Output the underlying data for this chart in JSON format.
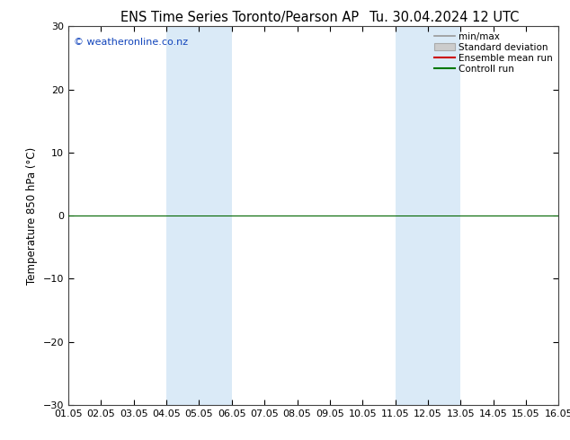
{
  "title_left": "ENS Time Series Toronto/Pearson AP",
  "title_right": "Tu. 30.04.2024 12 UTC",
  "ylabel": "Temperature 850 hPa (°C)",
  "watermark": "© weatheronline.co.nz",
  "xlim": [
    0,
    15
  ],
  "ylim": [
    -30,
    30
  ],
  "yticks": [
    -30,
    -20,
    -10,
    0,
    10,
    20,
    30
  ],
  "xtick_labels": [
    "01.05",
    "02.05",
    "03.05",
    "04.05",
    "05.05",
    "06.05",
    "07.05",
    "08.05",
    "09.05",
    "10.05",
    "11.05",
    "12.05",
    "13.05",
    "14.05",
    "15.05",
    "16.05"
  ],
  "shaded_bands": [
    {
      "x_start": 3,
      "x_end": 5,
      "color": "#daeaf7"
    },
    {
      "x_start": 10,
      "x_end": 12,
      "color": "#daeaf7"
    }
  ],
  "legend_items": [
    {
      "label": "min/max",
      "type": "line",
      "color": "#999999",
      "lw": 1.2,
      "ls": "-"
    },
    {
      "label": "Standard deviation",
      "type": "box",
      "color": "#cccccc"
    },
    {
      "label": "Ensemble mean run",
      "type": "line",
      "color": "#cc0000",
      "lw": 1.5,
      "ls": "-"
    },
    {
      "label": "Controll run",
      "type": "line",
      "color": "#007700",
      "lw": 1.5,
      "ls": "-"
    }
  ],
  "hline_y": 0,
  "hline_color": "#006600",
  "hline_lw": 0.8,
  "bg_color": "#ffffff",
  "plot_bg_color": "#ffffff",
  "spine_color": "#444444",
  "title_fontsize": 10.5,
  "label_fontsize": 8.5,
  "tick_fontsize": 8,
  "watermark_color": "#1144bb",
  "watermark_fontsize": 8
}
